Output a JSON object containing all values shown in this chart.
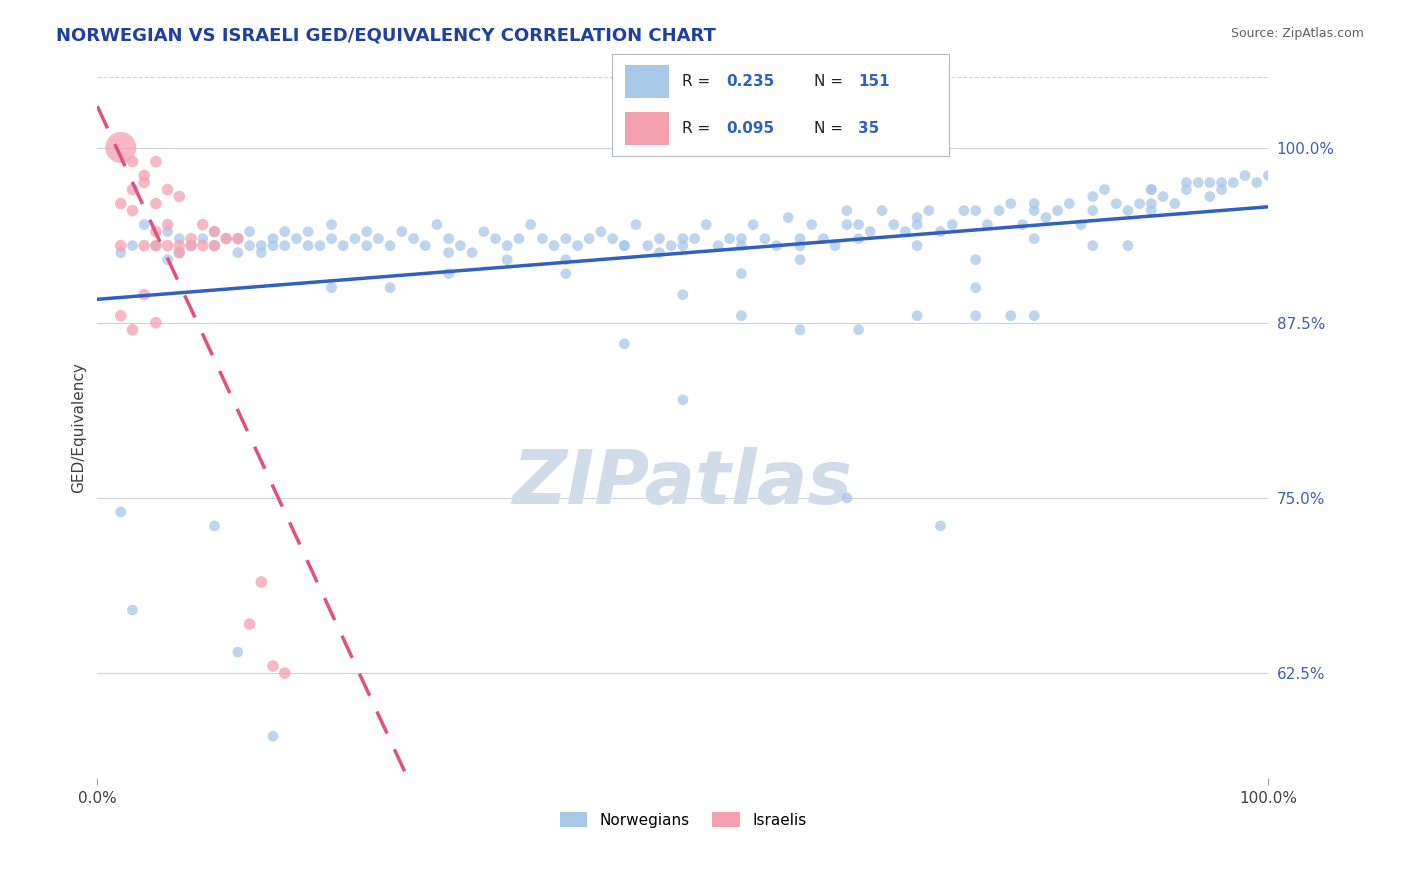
{
  "title": "NORWEGIAN VS ISRAELI GED/EQUIVALENCY CORRELATION CHART",
  "source": "Source: ZipAtlas.com",
  "ylabel": "GED/Equivalency",
  "xlim": [
    0.0,
    1.0
  ],
  "ylim": [
    0.55,
    1.05
  ],
  "x_tick_labels": [
    "0.0%",
    "100.0%"
  ],
  "y_tick_labels_right": [
    "62.5%",
    "75.0%",
    "87.5%",
    "100.0%"
  ],
  "y_ticks_right": [
    0.625,
    0.75,
    0.875,
    1.0
  ],
  "legend_label_norwegian": "Norwegians",
  "legend_label_israeli": "Israelis",
  "norwegian_color": "#a8c8e8",
  "norwegian_line_color": "#3060c0",
  "israeli_color": "#f4a0b0",
  "israeli_line_color": "#e05080",
  "watermark_text": "ZIPatlas",
  "watermark_color": "#d0dce8",
  "background_color": "#ffffff",
  "grid_color": "#c8d4e0",
  "title_color": "#2040a0",
  "norwegian_scatter": [
    [
      0.02,
      0.925
    ],
    [
      0.03,
      0.93
    ],
    [
      0.04,
      0.945
    ],
    [
      0.05,
      0.93
    ],
    [
      0.06,
      0.94
    ],
    [
      0.06,
      0.92
    ],
    [
      0.07,
      0.935
    ],
    [
      0.07,
      0.925
    ],
    [
      0.08,
      0.93
    ],
    [
      0.09,
      0.935
    ],
    [
      0.1,
      0.93
    ],
    [
      0.1,
      0.94
    ],
    [
      0.11,
      0.935
    ],
    [
      0.12,
      0.935
    ],
    [
      0.12,
      0.925
    ],
    [
      0.13,
      0.93
    ],
    [
      0.13,
      0.94
    ],
    [
      0.14,
      0.93
    ],
    [
      0.14,
      0.925
    ],
    [
      0.15,
      0.935
    ],
    [
      0.15,
      0.93
    ],
    [
      0.16,
      0.94
    ],
    [
      0.16,
      0.93
    ],
    [
      0.17,
      0.935
    ],
    [
      0.18,
      0.93
    ],
    [
      0.18,
      0.94
    ],
    [
      0.19,
      0.93
    ],
    [
      0.2,
      0.935
    ],
    [
      0.2,
      0.945
    ],
    [
      0.21,
      0.93
    ],
    [
      0.22,
      0.935
    ],
    [
      0.23,
      0.94
    ],
    [
      0.23,
      0.93
    ],
    [
      0.24,
      0.935
    ],
    [
      0.25,
      0.93
    ],
    [
      0.26,
      0.94
    ],
    [
      0.27,
      0.935
    ],
    [
      0.28,
      0.93
    ],
    [
      0.29,
      0.945
    ],
    [
      0.3,
      0.935
    ],
    [
      0.3,
      0.925
    ],
    [
      0.31,
      0.93
    ],
    [
      0.32,
      0.925
    ],
    [
      0.33,
      0.94
    ],
    [
      0.34,
      0.935
    ],
    [
      0.35,
      0.93
    ],
    [
      0.36,
      0.935
    ],
    [
      0.37,
      0.945
    ],
    [
      0.38,
      0.935
    ],
    [
      0.39,
      0.93
    ],
    [
      0.4,
      0.935
    ],
    [
      0.4,
      0.92
    ],
    [
      0.41,
      0.93
    ],
    [
      0.42,
      0.935
    ],
    [
      0.43,
      0.94
    ],
    [
      0.44,
      0.935
    ],
    [
      0.45,
      0.93
    ],
    [
      0.46,
      0.945
    ],
    [
      0.47,
      0.93
    ],
    [
      0.48,
      0.935
    ],
    [
      0.48,
      0.925
    ],
    [
      0.49,
      0.93
    ],
    [
      0.5,
      0.935
    ],
    [
      0.5,
      0.895
    ],
    [
      0.51,
      0.935
    ],
    [
      0.52,
      0.945
    ],
    [
      0.53,
      0.93
    ],
    [
      0.54,
      0.935
    ],
    [
      0.55,
      0.93
    ],
    [
      0.55,
      0.88
    ],
    [
      0.56,
      0.945
    ],
    [
      0.57,
      0.935
    ],
    [
      0.58,
      0.93
    ],
    [
      0.59,
      0.95
    ],
    [
      0.6,
      0.935
    ],
    [
      0.6,
      0.92
    ],
    [
      0.61,
      0.945
    ],
    [
      0.62,
      0.935
    ],
    [
      0.63,
      0.93
    ],
    [
      0.64,
      0.945
    ],
    [
      0.64,
      0.955
    ],
    [
      0.65,
      0.935
    ],
    [
      0.66,
      0.94
    ],
    [
      0.67,
      0.955
    ],
    [
      0.68,
      0.945
    ],
    [
      0.69,
      0.94
    ],
    [
      0.7,
      0.945
    ],
    [
      0.7,
      0.93
    ],
    [
      0.71,
      0.955
    ],
    [
      0.72,
      0.94
    ],
    [
      0.73,
      0.945
    ],
    [
      0.74,
      0.955
    ],
    [
      0.75,
      0.88
    ],
    [
      0.76,
      0.945
    ],
    [
      0.77,
      0.955
    ],
    [
      0.78,
      0.96
    ],
    [
      0.79,
      0.945
    ],
    [
      0.8,
      0.955
    ],
    [
      0.8,
      0.935
    ],
    [
      0.81,
      0.95
    ],
    [
      0.82,
      0.955
    ],
    [
      0.83,
      0.96
    ],
    [
      0.84,
      0.945
    ],
    [
      0.85,
      0.955
    ],
    [
      0.86,
      0.97
    ],
    [
      0.87,
      0.96
    ],
    [
      0.88,
      0.955
    ],
    [
      0.89,
      0.96
    ],
    [
      0.9,
      0.97
    ],
    [
      0.9,
      0.955
    ],
    [
      0.91,
      0.965
    ],
    [
      0.92,
      0.96
    ],
    [
      0.93,
      0.97
    ],
    [
      0.94,
      0.975
    ],
    [
      0.95,
      0.965
    ],
    [
      0.96,
      0.97
    ],
    [
      0.97,
      0.975
    ],
    [
      0.98,
      0.98
    ],
    [
      0.99,
      0.975
    ],
    [
      1.0,
      0.98
    ],
    [
      0.02,
      0.74
    ],
    [
      0.1,
      0.73
    ],
    [
      0.03,
      0.67
    ],
    [
      0.12,
      0.64
    ],
    [
      0.15,
      0.58
    ],
    [
      0.64,
      0.75
    ],
    [
      0.72,
      0.73
    ],
    [
      0.8,
      0.88
    ],
    [
      0.85,
      0.93
    ],
    [
      0.88,
      0.93
    ],
    [
      0.9,
      0.96
    ],
    [
      0.93,
      0.975
    ],
    [
      0.96,
      0.975
    ],
    [
      0.45,
      0.86
    ],
    [
      0.5,
      0.82
    ],
    [
      0.55,
      0.91
    ],
    [
      0.6,
      0.87
    ],
    [
      0.65,
      0.87
    ],
    [
      0.7,
      0.88
    ],
    [
      0.75,
      0.92
    ],
    [
      0.75,
      0.9
    ],
    [
      0.78,
      0.88
    ],
    [
      0.2,
      0.9
    ],
    [
      0.25,
      0.9
    ],
    [
      0.3,
      0.91
    ],
    [
      0.35,
      0.92
    ],
    [
      0.4,
      0.91
    ],
    [
      0.45,
      0.93
    ],
    [
      0.5,
      0.93
    ],
    [
      0.55,
      0.935
    ],
    [
      0.6,
      0.93
    ],
    [
      0.65,
      0.945
    ],
    [
      0.7,
      0.95
    ],
    [
      0.75,
      0.955
    ],
    [
      0.8,
      0.96
    ],
    [
      0.85,
      0.965
    ],
    [
      0.9,
      0.97
    ],
    [
      0.95,
      0.975
    ]
  ],
  "israeli_scatter": [
    [
      0.02,
      0.93
    ],
    [
      0.03,
      0.955
    ],
    [
      0.04,
      0.93
    ],
    [
      0.05,
      0.94
    ],
    [
      0.05,
      0.93
    ],
    [
      0.06,
      0.945
    ],
    [
      0.07,
      0.925
    ],
    [
      0.07,
      0.93
    ],
    [
      0.08,
      0.935
    ],
    [
      0.09,
      0.93
    ],
    [
      0.1,
      0.94
    ],
    [
      0.12,
      0.935
    ],
    [
      0.13,
      0.66
    ],
    [
      0.14,
      0.69
    ],
    [
      0.15,
      0.63
    ],
    [
      0.16,
      0.625
    ],
    [
      0.02,
      0.88
    ],
    [
      0.03,
      0.87
    ],
    [
      0.04,
      0.895
    ],
    [
      0.05,
      0.875
    ],
    [
      0.02,
      0.96
    ],
    [
      0.03,
      0.97
    ],
    [
      0.04,
      0.975
    ],
    [
      0.05,
      0.96
    ],
    [
      0.06,
      0.97
    ],
    [
      0.07,
      0.965
    ],
    [
      0.02,
      1.0
    ],
    [
      0.03,
      0.99
    ],
    [
      0.04,
      0.98
    ],
    [
      0.05,
      0.99
    ],
    [
      0.09,
      0.945
    ],
    [
      0.1,
      0.93
    ],
    [
      0.11,
      0.935
    ],
    [
      0.08,
      0.93
    ],
    [
      0.06,
      0.93
    ]
  ],
  "israeli_big_point_idx": 26,
  "norwegian_dot_size": 60,
  "israeli_dot_size": 70,
  "israeli_big_dot_size": 500
}
